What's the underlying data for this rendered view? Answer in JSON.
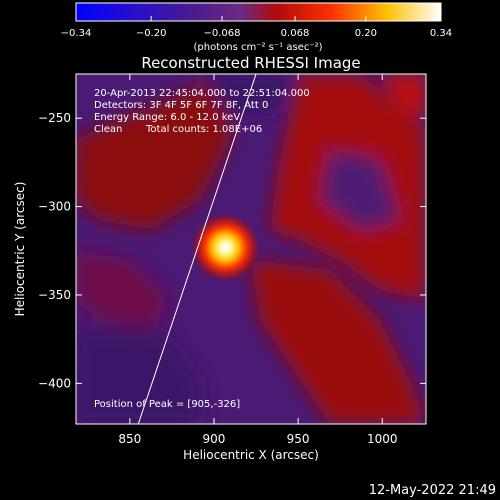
{
  "chart_data": {
    "type": "heatmap",
    "title": "Reconstructed RHESSI Image",
    "xlabel": "Heliocentric X (arcsec)",
    "ylabel": "Heliocentric Y (arcsec)",
    "xlim": [
      818,
      1026
    ],
    "ylim": [
      -423,
      -225
    ],
    "x_ticks": [
      850,
      900,
      950,
      1000
    ],
    "y_ticks": [
      -250,
      -300,
      -350,
      -400
    ],
    "x_tick_labels": [
      "850",
      "900",
      "950",
      "1000"
    ],
    "y_tick_labels": [
      "−250",
      "−300",
      "−350",
      "−400"
    ],
    "colorbar": {
      "range": [
        -0.34,
        0.34
      ],
      "ticks": [
        -0.34,
        -0.2,
        -0.068,
        0.068,
        0.2,
        0.34
      ],
      "tick_labels": [
        "−0.34",
        "−0.20",
        "−0.068",
        "0.068",
        "0.20",
        "0.34"
      ],
      "unit_label": "(photons cm⁻² s⁻¹ asec⁻²)",
      "colormap": [
        "#0000ff",
        "#3a0d7a",
        "#6a2a86",
        "#a00808",
        "#ff1400",
        "#ffd200",
        "#ffffff"
      ]
    },
    "annotations": {
      "time_range": "20-Apr-2013 22:45:04.000 to 22:51:04.000",
      "detectors": "Detectors: 3F 4F 5F 6F 7F 8F, Att 0",
      "energy_range": "Energy Range: 6.0 - 12.0 keV",
      "method": "Clean",
      "total_counts": "Total counts: 1.08E+06",
      "peak_position": "Position of Peak = [905,-326]"
    },
    "peak": {
      "x": 905,
      "y": -326
    },
    "limb_line": [
      [
        855,
        -423
      ],
      [
        925,
        -225
      ]
    ],
    "features": [
      {
        "label": "peak source",
        "x": 905,
        "y": -326,
        "level": 0.34
      },
      {
        "label": "red ridge upper-left",
        "x": 855,
        "y": -290,
        "level": 0.12
      },
      {
        "label": "red ridge right",
        "x": 960,
        "y": -330,
        "level": 0.15
      },
      {
        "label": "red ridge lower-right",
        "x": 995,
        "y": -395,
        "level": 0.1
      },
      {
        "label": "red ridge top-right",
        "x": 1010,
        "y": -240,
        "level": 0.12
      },
      {
        "label": "dark purple lower-left",
        "x": 850,
        "y": -380,
        "level": -0.2
      },
      {
        "label": "dark purple top",
        "x": 890,
        "y": -245,
        "level": -0.18
      }
    ]
  },
  "footer_timestamp": "12-May-2022 21:49"
}
